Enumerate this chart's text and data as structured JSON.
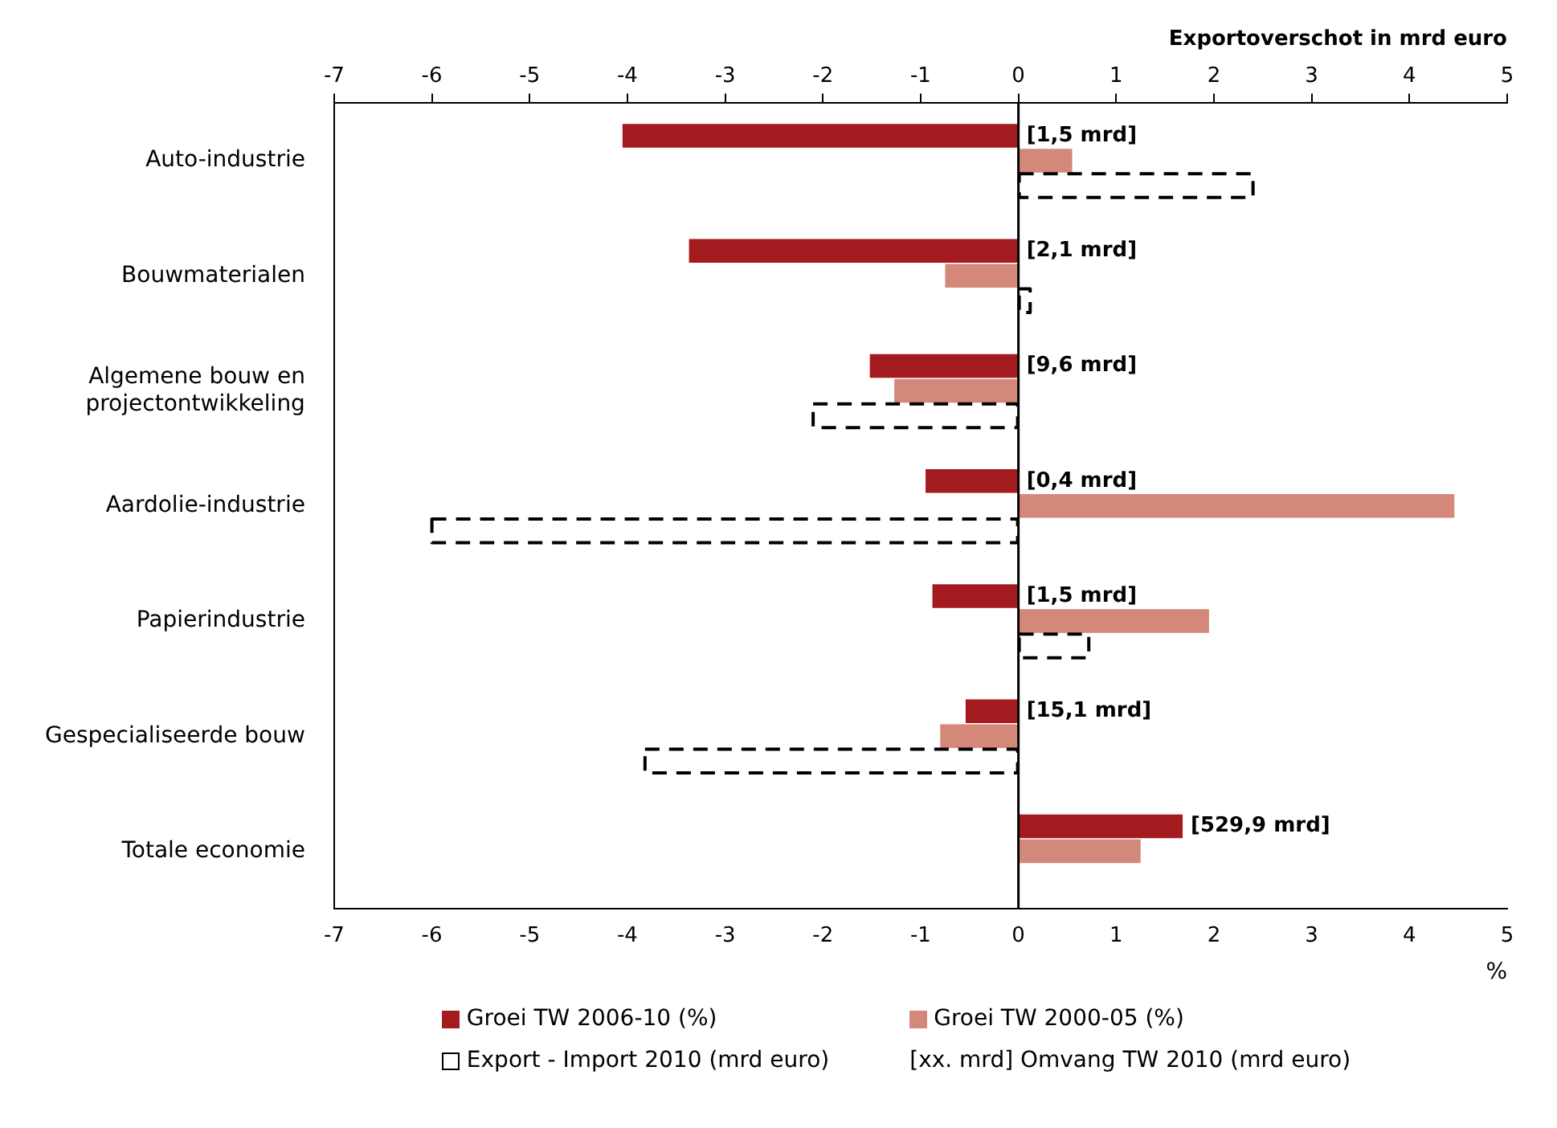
{
  "chart_data": {
    "type": "bar",
    "orientation": "horizontal",
    "categories": [
      "Auto-industrie",
      "Bouwmaterialen",
      "Algemene bouw en projectontwikkeling",
      "Aardolie-industrie",
      "Papierindustrie",
      "Gespecialiseerde bouw",
      "Totale economie"
    ],
    "series": [
      {
        "name": "Groei TW 2006-10 (%)",
        "color": "#a31a1f",
        "values": [
          -4.05,
          -3.37,
          -1.52,
          -0.95,
          -0.88,
          -0.54,
          1.68
        ]
      },
      {
        "name": "Groei TW 2000-05 (%)",
        "color": "#d4887a",
        "values": [
          0.55,
          -0.75,
          -1.27,
          4.46,
          1.95,
          -0.8,
          1.25
        ]
      },
      {
        "name": "Export - Import 2010 (mrd euro)",
        "color": "#000000",
        "axis": "x2",
        "line_style": "dashed",
        "values": [
          2.4,
          0.12,
          -2.1,
          -6.0,
          0.72,
          -3.82,
          null
        ]
      }
    ],
    "xlabel": "%",
    "x2label": "Exportoverschot in mrd euro",
    "xlim": [
      -7,
      5
    ],
    "xticks": [
      -7,
      -6,
      -5,
      -4,
      -3,
      -2,
      -1,
      0,
      1,
      2,
      3,
      4,
      5
    ],
    "x2lim": [
      -7,
      5
    ],
    "x2ticks": [
      -7,
      -6,
      -5,
      -4,
      -3,
      -2,
      -1,
      0,
      1,
      2,
      3,
      4,
      5
    ],
    "annotations": [
      "[1,5 mrd]",
      "[2,1 mrd]",
      "[9,6 mrd]",
      "[0,4 mrd]",
      "[1,5 mrd]",
      "[15,1 mrd]",
      "[529,9 mrd]",
      "[xx. mrd]  Omvang TW 2010 (mrd euro)"
    ],
    "ref_lines": [
      {
        "axis": "x",
        "value": 0,
        "color": "#000000"
      }
    ],
    "grid": false,
    "legend": "bottom"
  }
}
